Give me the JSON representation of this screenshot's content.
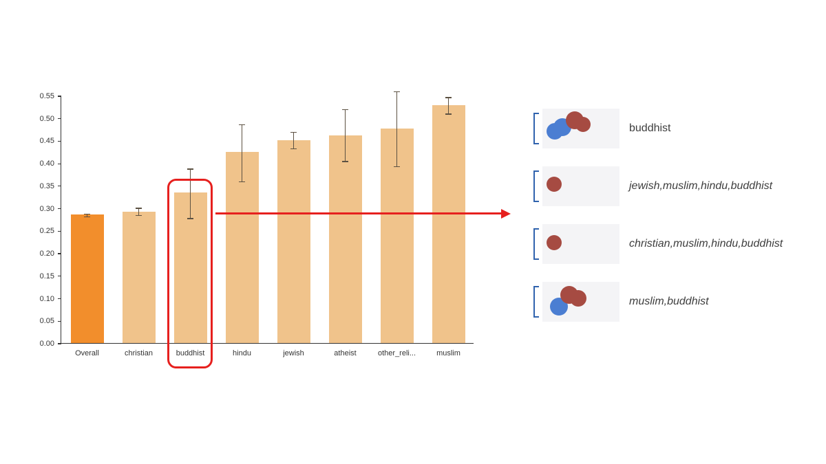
{
  "chart_data": {
    "type": "bar",
    "title": "",
    "xlabel": "",
    "ylabel": "",
    "categories": [
      "Overall",
      "christian",
      "buddhist",
      "hindu",
      "jewish",
      "atheist",
      "other_reli...",
      "muslim"
    ],
    "values": [
      0.285,
      0.292,
      0.335,
      0.425,
      0.451,
      0.462,
      0.477,
      0.528
    ],
    "errors_low": [
      0.282,
      0.285,
      0.278,
      0.36,
      0.433,
      0.405,
      0.393,
      0.51
    ],
    "errors_high": [
      0.288,
      0.301,
      0.388,
      0.487,
      0.47,
      0.52,
      0.56,
      0.547
    ],
    "ylim": [
      0,
      0.55
    ],
    "ytick_step": 0.05,
    "grid": false,
    "legend_position": "right",
    "bar_colors": [
      "#f28e2c",
      "#f0c38b",
      "#f0c38b",
      "#f0c38b",
      "#f0c38b",
      "#f0c38b",
      "#f0c38b",
      "#f0c38b"
    ],
    "highlight_index": 2
  },
  "annotations": {
    "highlight_color": "#e6201e",
    "arrow_color": "#e6201e"
  },
  "legend": {
    "point_colors": {
      "blue": "#4b7ed2",
      "red": "#a64b42"
    },
    "items": [
      {
        "label": "buddhist",
        "italic": false,
        "points": [
          {
            "c": "blue",
            "x": 18,
            "y": 33,
            "r": 12
          },
          {
            "c": "blue",
            "x": 29,
            "y": 27,
            "r": 13
          },
          {
            "c": "red",
            "x": 47,
            "y": 17,
            "r": 13
          },
          {
            "c": "red",
            "x": 59,
            "y": 23,
            "r": 11
          }
        ]
      },
      {
        "label": "jewish,muslim,hindu,buddhist",
        "italic": true,
        "points": [
          {
            "c": "red",
            "x": 17,
            "y": 26,
            "r": 11
          }
        ]
      },
      {
        "label": "christian,muslim,hindu,buddhist",
        "italic": true,
        "points": [
          {
            "c": "red",
            "x": 17,
            "y": 27,
            "r": 11
          }
        ]
      },
      {
        "label": "muslim,buddhist",
        "italic": true,
        "points": [
          {
            "c": "blue",
            "x": 24,
            "y": 36,
            "r": 13
          },
          {
            "c": "red",
            "x": 39,
            "y": 19,
            "r": 13
          },
          {
            "c": "red",
            "x": 52,
            "y": 24,
            "r": 12
          }
        ]
      }
    ]
  }
}
